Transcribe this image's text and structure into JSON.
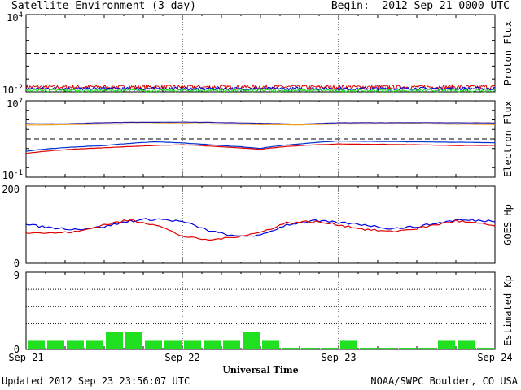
{
  "header": {
    "title": "Satellite Environment (3 day)",
    "begin_label": "Begin:",
    "begin_value": "2012 Sep 21 0000 UTC"
  },
  "footer": {
    "updated": "Updated 2012 Sep 23 23:56:07 UTC",
    "credit": "NOAA/SWPC Boulder, CO USA"
  },
  "x_axis": {
    "title": "Universal Time",
    "ticks": [
      "Sep 21",
      "Sep 22",
      "Sep 23",
      "Sep 24"
    ]
  },
  "colors": {
    "red": "#e00000",
    "blue": "#0000e0",
    "green": "#20e020",
    "navy": "#2a1aa0",
    "orange": "#e8a020",
    "darkblue": "#0030d0"
  },
  "chart_data": [
    {
      "type": "line",
      "ylabel": "Proton Flux",
      "y_scale": "log",
      "ylim": [
        0.01,
        10000
      ],
      "ytick_labels": [
        {
          "base": "10",
          "exp": "4"
        },
        {
          "base": "10",
          "exp": "-2"
        }
      ],
      "threshold": 10,
      "series": [
        {
          "color": "red",
          "level": 0.024,
          "noise": 0.009
        },
        {
          "color": "blue",
          "level": 0.018,
          "noise": 0.005
        },
        {
          "color": "green",
          "level": 0.013,
          "noise": 0.003
        }
      ]
    },
    {
      "type": "line",
      "ylabel": "Electron Flux",
      "y_scale": "log",
      "ylim": [
        0.1,
        10000000
      ],
      "ytick_labels": [
        {
          "base": "10",
          "exp": "7"
        },
        {
          "base": "10",
          "exp": "-1"
        }
      ],
      "threshold": 1000,
      "series": [
        {
          "color": "navy",
          "values": [
            [
              0,
              40000
            ],
            [
              6,
              38000
            ],
            [
              12,
              52000
            ],
            [
              24,
              60000
            ],
            [
              36,
              45000
            ],
            [
              42,
              35000
            ],
            [
              48,
              50000
            ],
            [
              60,
              52000
            ],
            [
              72,
              48000
            ]
          ]
        },
        {
          "color": "orange",
          "values": [
            [
              0,
              28000
            ],
            [
              12,
              36000
            ],
            [
              24,
              42000
            ],
            [
              36,
              32000
            ],
            [
              42,
              30000
            ],
            [
              48,
              37000
            ],
            [
              60,
              39000
            ],
            [
              72,
              32000
            ]
          ]
        },
        {
          "color": "darkblue",
          "values": [
            [
              0,
              50
            ],
            [
              12,
              200
            ],
            [
              20,
              500
            ],
            [
              30,
              200
            ],
            [
              36,
              100
            ],
            [
              42,
              300
            ],
            [
              48,
              600
            ],
            [
              60,
              500
            ],
            [
              72,
              400
            ]
          ]
        },
        {
          "color": "red",
          "values": [
            [
              0,
              30
            ],
            [
              12,
              120
            ],
            [
              24,
              250
            ],
            [
              30,
              150
            ],
            [
              36,
              80
            ],
            [
              42,
              200
            ],
            [
              48,
              300
            ],
            [
              60,
              250
            ],
            [
              66,
              200
            ],
            [
              72,
              220
            ]
          ]
        }
      ]
    },
    {
      "type": "line",
      "ylabel": "GOES Hp",
      "ylim": [
        0,
        200
      ],
      "yticks": [
        0,
        200
      ],
      "series": [
        {
          "color": "blue",
          "values": [
            [
              0,
              100
            ],
            [
              4,
              92
            ],
            [
              8,
              88
            ],
            [
              12,
              95
            ],
            [
              16,
              110
            ],
            [
              20,
              115
            ],
            [
              24,
              108
            ],
            [
              28,
              85
            ],
            [
              32,
              70
            ],
            [
              36,
              72
            ],
            [
              40,
              100
            ],
            [
              44,
              110
            ],
            [
              48,
              105
            ],
            [
              52,
              100
            ],
            [
              56,
              90
            ],
            [
              60,
              95
            ],
            [
              66,
              112
            ],
            [
              72,
              110
            ]
          ]
        },
        {
          "color": "red",
          "values": [
            [
              0,
              80
            ],
            [
              4,
              78
            ],
            [
              8,
              82
            ],
            [
              12,
              100
            ],
            [
              16,
              112
            ],
            [
              20,
              100
            ],
            [
              24,
              70
            ],
            [
              28,
              60
            ],
            [
              32,
              68
            ],
            [
              36,
              80
            ],
            [
              40,
              105
            ],
            [
              44,
              108
            ],
            [
              48,
              100
            ],
            [
              52,
              88
            ],
            [
              56,
              82
            ],
            [
              60,
              90
            ],
            [
              66,
              110
            ],
            [
              72,
              97
            ]
          ]
        }
      ]
    },
    {
      "type": "bar",
      "ylabel": "Estimated Kp",
      "ylim": [
        0,
        9
      ],
      "yticks": [
        0,
        9
      ],
      "grid": [
        3,
        5,
        7
      ],
      "color": "green",
      "values": [
        1,
        1,
        1,
        1,
        2,
        2,
        1,
        1,
        1,
        1,
        1,
        2,
        1,
        0,
        0,
        0,
        1,
        0,
        0,
        0,
        0,
        1,
        1,
        0
      ]
    }
  ]
}
